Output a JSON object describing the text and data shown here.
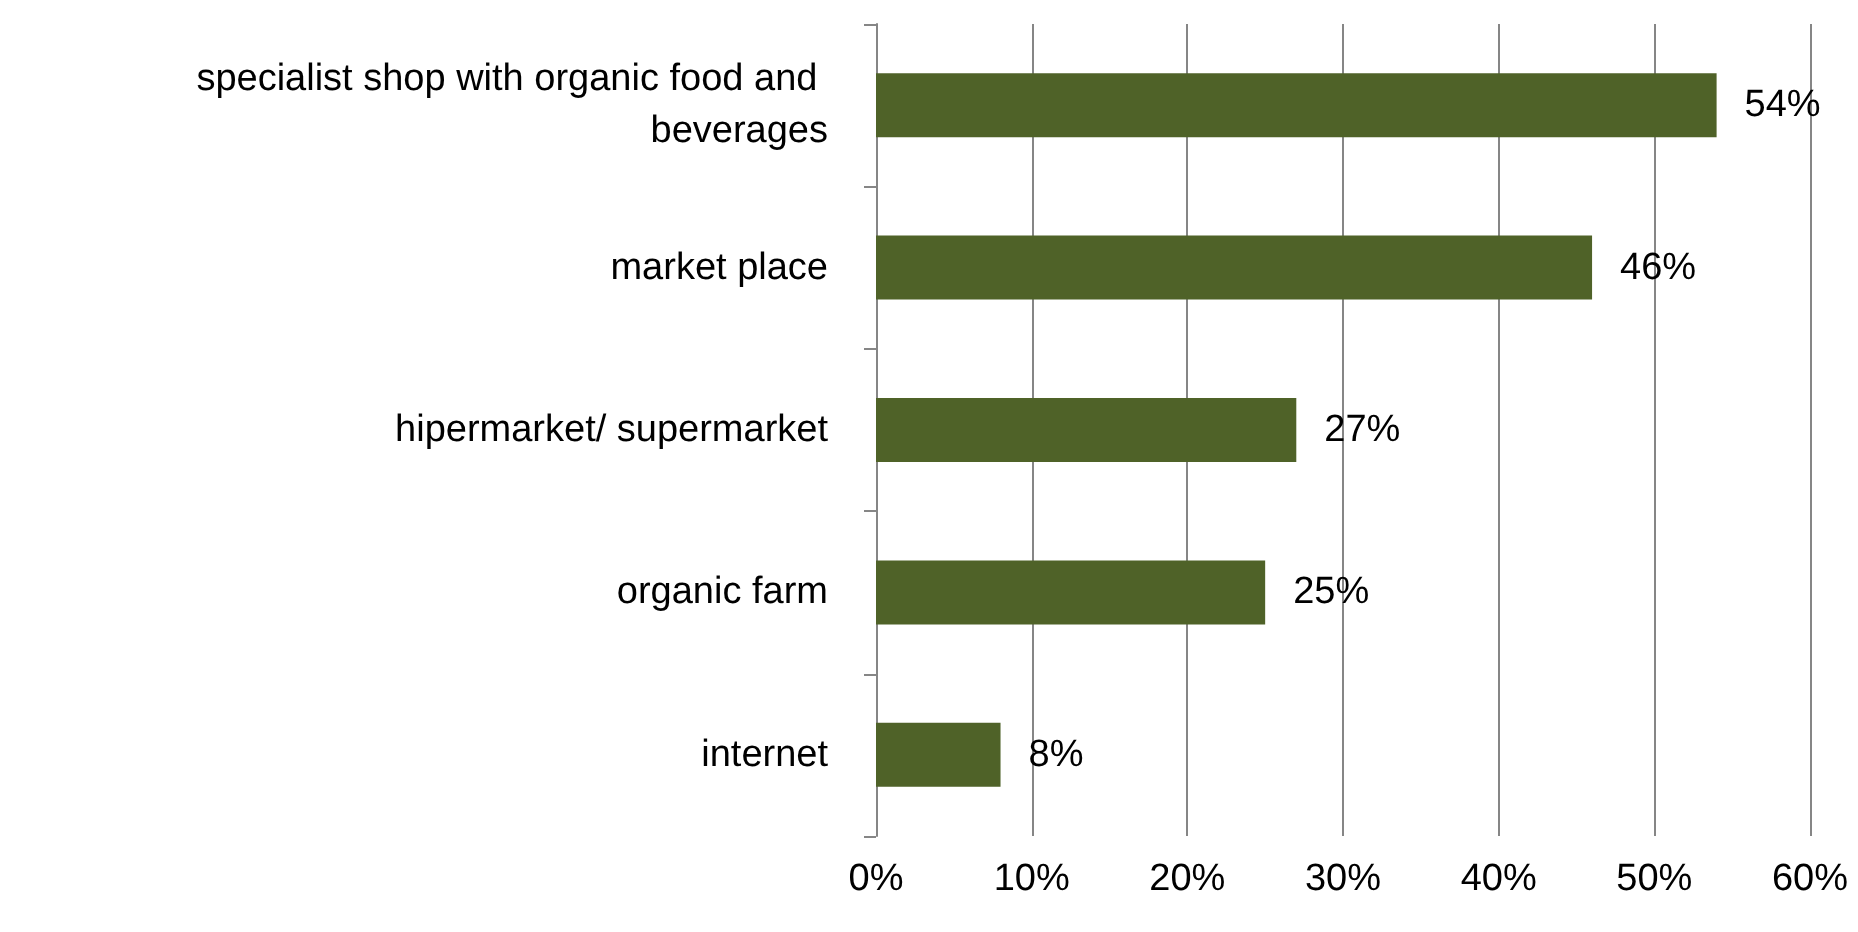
{
  "chart_data": {
    "type": "bar",
    "orientation": "horizontal",
    "categories": [
      "specialist shop with organic food and beverages",
      "market place",
      "hipermarket/ supermarket",
      "organic farm",
      "internet"
    ],
    "values": [
      54,
      46,
      27,
      25,
      8
    ],
    "value_labels": [
      "54%",
      "46%",
      "27%",
      "25%",
      "8%"
    ],
    "color": "#4f6228",
    "xlim": [
      0,
      60
    ],
    "xticks": [
      {
        "value": 0,
        "label": "0%"
      },
      {
        "value": 10,
        "label": "10%"
      },
      {
        "value": 20,
        "label": "20%"
      },
      {
        "value": 30,
        "label": "30%"
      },
      {
        "value": 40,
        "label": "40%"
      },
      {
        "value": 50,
        "label": "50%"
      },
      {
        "value": 60,
        "label": "60%"
      }
    ],
    "grid": "x"
  }
}
